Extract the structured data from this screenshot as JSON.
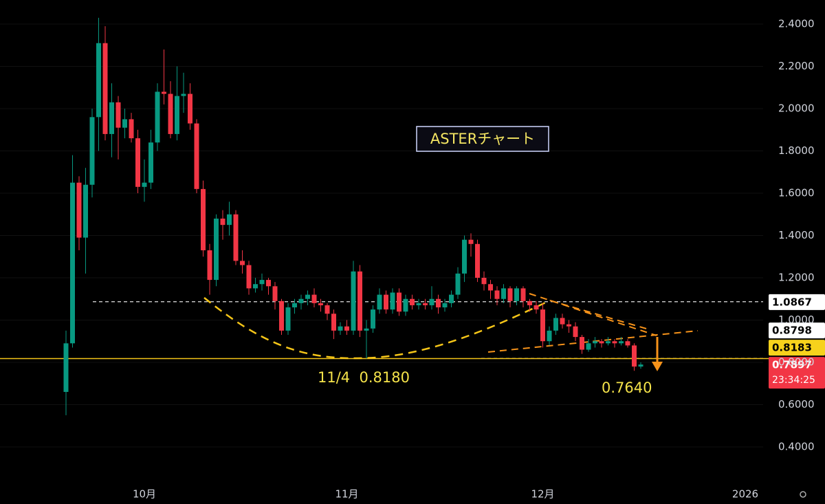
{
  "chart_data": {
    "type": "candlestick",
    "title": "ASTERチャート",
    "categories": [
      null,
      null,
      null,
      null,
      null,
      null,
      null,
      null,
      null,
      null,
      null,
      null,
      "10月",
      null,
      null,
      null,
      null,
      null,
      null,
      null,
      null,
      null,
      null,
      null,
      null,
      null,
      null,
      null,
      null,
      null,
      null,
      null,
      null,
      null,
      null,
      null,
      null,
      null,
      null,
      null,
      null,
      null,
      null,
      "11月",
      null,
      null,
      null,
      null,
      null,
      null,
      null,
      null,
      null,
      null,
      null,
      null,
      null,
      null,
      null,
      null,
      null,
      null,
      null,
      null,
      null,
      null,
      null,
      null,
      null,
      null,
      null,
      null,
      null,
      "12月",
      null,
      null,
      null,
      null,
      null,
      null,
      null,
      null,
      null,
      null,
      null,
      null,
      null,
      null,
      null,
      null,
      null,
      null,
      null,
      null,
      null,
      null,
      null,
      null,
      null,
      null,
      null,
      null,
      null,
      null,
      "2026"
    ],
    "open": [
      0.66,
      0.89,
      1.65,
      1.39,
      1.64,
      1.96,
      2.31,
      1.88,
      2.03,
      1.91,
      1.95,
      1.86,
      1.63,
      1.65,
      1.84,
      2.08,
      2.07,
      1.88,
      2.06,
      2.07,
      1.93,
      1.62,
      1.33,
      1.19,
      1.48,
      1.45,
      1.5,
      1.28,
      1.26,
      1.15,
      1.17,
      1.19,
      1.16,
      1.09,
      0.95,
      1.06,
      1.08,
      1.1,
      1.12,
      1.08,
      1.07,
      1.03,
      0.95,
      0.97,
      0.95,
      1.23,
      0.95,
      0.96,
      1.05,
      1.12,
      1.05,
      1.13,
      1.04,
      1.1,
      1.07,
      1.08,
      1.07,
      1.1,
      1.06,
      1.08,
      1.12,
      1.22,
      1.38,
      1.36,
      1.2,
      1.17,
      1.14,
      1.1,
      1.15,
      1.09,
      1.15,
      1.09,
      1.07,
      1.05,
      0.9,
      0.95,
      1.01,
      0.98,
      0.97,
      0.92,
      0.86,
      0.89,
      0.9,
      0.89,
      0.9,
      0.89,
      0.9,
      0.88,
      0.78,
      null,
      null,
      null,
      null,
      null,
      null,
      null,
      null,
      null,
      null,
      null,
      null,
      null,
      null,
      null,
      null
    ],
    "high": [
      0.95,
      1.78,
      1.68,
      1.72,
      2.0,
      2.43,
      2.39,
      2.12,
      2.06,
      2.0,
      1.98,
      1.9,
      1.76,
      1.9,
      2.12,
      2.28,
      2.13,
      2.2,
      2.17,
      2.12,
      1.95,
      1.66,
      1.36,
      1.5,
      1.52,
      1.56,
      1.52,
      1.33,
      1.28,
      1.2,
      1.22,
      1.2,
      1.18,
      1.1,
      1.08,
      1.1,
      1.12,
      1.14,
      1.15,
      1.1,
      1.08,
      1.05,
      0.99,
      1.0,
      1.28,
      1.26,
      1.0,
      1.07,
      1.15,
      1.14,
      1.15,
      1.15,
      1.12,
      1.12,
      1.1,
      1.1,
      1.16,
      1.12,
      1.1,
      1.14,
      1.25,
      1.4,
      1.41,
      1.38,
      1.23,
      1.19,
      1.16,
      1.17,
      1.16,
      1.16,
      1.16,
      1.1,
      1.09,
      1.08,
      0.97,
      1.03,
      1.03,
      1.0,
      0.99,
      0.93,
      0.91,
      0.92,
      0.91,
      0.92,
      0.91,
      0.92,
      0.91,
      0.89,
      0.8,
      null,
      null,
      null,
      null,
      null,
      null,
      null,
      null,
      null,
      null,
      null,
      null,
      null,
      null,
      null,
      null
    ],
    "low": [
      0.55,
      0.87,
      1.33,
      1.22,
      1.58,
      1.8,
      1.85,
      1.77,
      1.76,
      1.86,
      1.84,
      1.6,
      1.56,
      1.62,
      1.8,
      2.02,
      1.86,
      1.85,
      1.98,
      1.9,
      1.6,
      1.3,
      1.12,
      1.16,
      1.38,
      1.4,
      1.26,
      1.22,
      1.12,
      1.13,
      1.14,
      1.12,
      1.05,
      0.93,
      0.93,
      1.03,
      1.05,
      1.07,
      1.06,
      1.04,
      1.0,
      0.91,
      0.93,
      0.93,
      0.93,
      0.92,
      0.818,
      0.94,
      1.03,
      1.03,
      1.03,
      1.02,
      1.02,
      1.05,
      1.05,
      1.05,
      1.05,
      1.03,
      1.04,
      1.06,
      1.1,
      1.18,
      1.3,
      1.18,
      1.14,
      1.1,
      1.07,
      1.08,
      1.06,
      1.07,
      1.06,
      1.04,
      1.03,
      0.87,
      0.88,
      0.93,
      0.96,
      0.94,
      0.9,
      0.84,
      0.85,
      0.87,
      0.87,
      0.88,
      0.87,
      0.88,
      0.87,
      0.76,
      0.77,
      null,
      null,
      null,
      null,
      null,
      null,
      null,
      null,
      null,
      null,
      null,
      null,
      null,
      null,
      null,
      null
    ],
    "close": [
      0.89,
      1.65,
      1.39,
      1.64,
      1.96,
      2.31,
      1.88,
      2.03,
      1.91,
      1.95,
      1.86,
      1.63,
      1.65,
      1.84,
      2.08,
      2.07,
      1.88,
      2.06,
      2.07,
      1.93,
      1.62,
      1.33,
      1.19,
      1.48,
      1.45,
      1.5,
      1.28,
      1.26,
      1.15,
      1.17,
      1.19,
      1.16,
      1.09,
      0.95,
      1.06,
      1.08,
      1.1,
      1.12,
      1.08,
      1.07,
      1.03,
      0.95,
      0.97,
      0.95,
      1.23,
      0.95,
      0.96,
      1.05,
      1.12,
      1.05,
      1.13,
      1.04,
      1.1,
      1.07,
      1.08,
      1.07,
      1.1,
      1.06,
      1.08,
      1.12,
      1.22,
      1.38,
      1.36,
      1.2,
      1.17,
      1.14,
      1.1,
      1.15,
      1.09,
      1.15,
      1.09,
      1.07,
      1.05,
      0.9,
      0.95,
      1.01,
      0.98,
      0.97,
      0.92,
      0.86,
      0.89,
      0.9,
      0.89,
      0.9,
      0.89,
      0.9,
      0.88,
      0.78,
      0.7897,
      null,
      null,
      null,
      null,
      null,
      null,
      null,
      null,
      null,
      null,
      null,
      null,
      null,
      null,
      null,
      null
    ],
    "up_color": "#089981",
    "down_color": "#f23645",
    "ylim": [
      0.221,
      2.514
    ],
    "yticks": [
      {
        "value": 0.4,
        "label": "0.4000"
      },
      {
        "value": 0.6,
        "label": "0.6000"
      },
      {
        "value": 0.8,
        "label": "0.8000"
      },
      {
        "value": 1.0,
        "label": "1.0000"
      },
      {
        "value": 1.2,
        "label": "1.2000"
      },
      {
        "value": 1.4,
        "label": "1.4000"
      },
      {
        "value": 1.6,
        "label": "1.6000"
      },
      {
        "value": 1.8,
        "label": "1.8000"
      },
      {
        "value": 2.0,
        "label": "2.0000"
      },
      {
        "value": 2.2,
        "label": "2.2000"
      },
      {
        "value": 2.4,
        "label": "2.4000"
      }
    ],
    "horizontal_lines": {
      "values": [
        1.0867,
        0.8183,
        0.818
      ],
      "colors": [
        "#ffffff",
        "#ffffff",
        "#f5c518"
      ],
      "dashed": [
        true,
        true,
        false
      ]
    },
    "price_labels": {
      "values": [
        1.0867,
        0.8798,
        0.8183,
        0.7897
      ],
      "colors": [
        "#ffffff",
        "#ffffff",
        "#f7d21c",
        "#f23645"
      ],
      "text_colors": [
        "#000000",
        "#000000",
        "#000000",
        "#ffffff"
      ]
    },
    "countdown": "23:34:25",
    "annotations": [
      "11/4  0.8180",
      "0.7640"
    ]
  }
}
